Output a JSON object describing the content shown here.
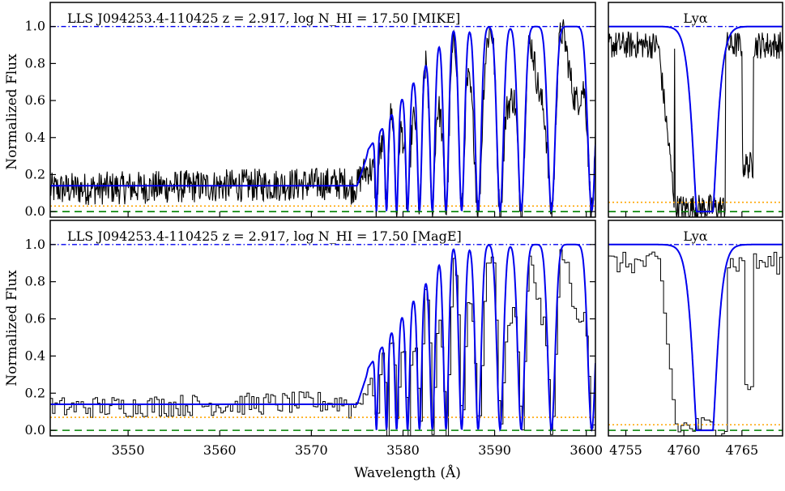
{
  "figure": {
    "ylabel": "Normalized Flux",
    "xlabel": "Wavelength (Å)",
    "colors": {
      "data": "#000000",
      "model": "#0000ee",
      "continuum": "#0000ee",
      "error": "#ffa500",
      "zero": "#008000"
    }
  },
  "chart_data": [
    {
      "type": "line",
      "panel": "top-left",
      "title": "LLS J094253.4-110425 z = 2.917,  log N_HI = 17.50   [MIKE]",
      "xlim": [
        3541.5,
        3601
      ],
      "ylim": [
        -0.03,
        1.13
      ],
      "yticks": [
        0.0,
        0.2,
        0.4,
        0.6,
        0.8,
        1.0
      ],
      "ytick_labels": [
        "0.0",
        "0.2",
        "0.4",
        "0.6",
        "0.8",
        "1.0"
      ],
      "series": [],
      "model_dips": [
        3577.1,
        3578.2,
        3579.3,
        3580.5,
        3581.8,
        3583.2,
        3584.7,
        3586.4,
        3588.2,
        3590.6,
        3592.9,
        3596.2,
        3600.6
      ],
      "model_edge": 3575.0,
      "model_baseline": 0.14,
      "continuum": 1.0,
      "zero": 0.0,
      "error_level": 0.03
    },
    {
      "type": "line",
      "panel": "top-right",
      "title": "Lyα",
      "xlim": [
        4753.5,
        4768.5
      ],
      "ylim": [
        -0.03,
        1.13
      ],
      "series": [],
      "model_center": 4761.8,
      "continuum": 1.0,
      "zero": 0.0,
      "error_level": 0.05
    },
    {
      "type": "line",
      "panel": "bottom-left",
      "title": "LLS J094253.4-110425 z = 2.917,  log N_HI = 17.50   [MagE]",
      "xlim": [
        3541.5,
        3601
      ],
      "ylim": [
        -0.03,
        1.13
      ],
      "xticks": [
        3550,
        3560,
        3570,
        3580,
        3590,
        3600
      ],
      "xtick_labels": [
        "3550",
        "3560",
        "3570",
        "3580",
        "3590",
        "3600"
      ],
      "yticks": [
        0.0,
        0.2,
        0.4,
        0.6,
        0.8,
        1.0
      ],
      "ytick_labels": [
        "0.0",
        "0.2",
        "0.4",
        "0.6",
        "0.8",
        "1.0"
      ],
      "series": [],
      "model_dips": [
        3577.1,
        3578.2,
        3579.3,
        3580.5,
        3581.8,
        3583.2,
        3584.7,
        3586.4,
        3588.2,
        3590.6,
        3592.9,
        3596.2,
        3600.6
      ],
      "model_edge": 3575.0,
      "model_baseline": 0.14,
      "continuum": 1.0,
      "zero": 0.0,
      "error_level": 0.07
    },
    {
      "type": "line",
      "panel": "bottom-right",
      "title": "Lyα",
      "xlim": [
        4753.5,
        4768.5
      ],
      "ylim": [
        -0.03,
        1.13
      ],
      "xticks": [
        4755,
        4760,
        4765
      ],
      "xtick_labels": [
        "4755",
        "4760",
        "4765"
      ],
      "series": [],
      "model_center": 4761.8,
      "continuum": 1.0,
      "zero": 0.0,
      "error_level": 0.03
    }
  ]
}
